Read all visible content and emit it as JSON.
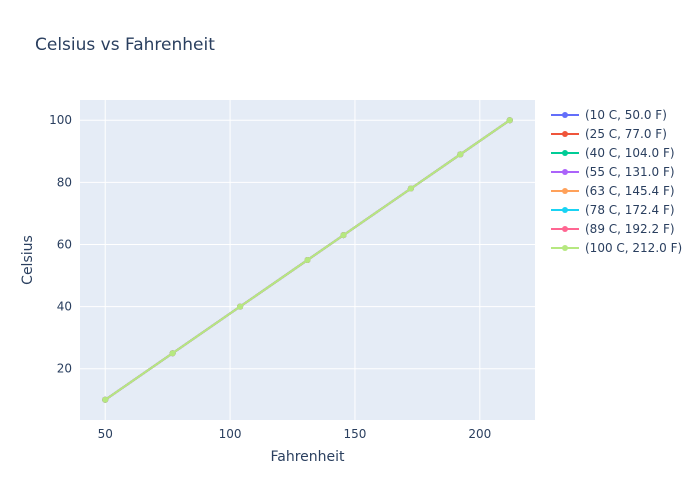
{
  "chart_data": {
    "type": "line",
    "title": "Celsius vs Fahrenheit",
    "xlabel": "Fahrenheit",
    "ylabel": "Celsius",
    "xlim": [
      39.9,
      222.1
    ],
    "ylim": [
      3.5,
      106.5
    ],
    "x_ticks": [
      50,
      100,
      150,
      200
    ],
    "y_ticks": [
      20,
      40,
      60,
      80,
      100
    ],
    "grid": true,
    "legend_position": "right",
    "plot_background": "#e5ecf6",
    "series": [
      {
        "name": "(10 C, 50.0 F)",
        "color": "#636efa",
        "x": [
          50.0,
          77.0,
          104.0,
          131.0,
          145.4,
          172.4,
          192.2,
          212.0
        ],
        "y": [
          10,
          25,
          40,
          55,
          63,
          78,
          89,
          100
        ]
      },
      {
        "name": "(25 C, 77.0 F)",
        "color": "#ef553b",
        "x": [
          50.0,
          77.0,
          104.0,
          131.0,
          145.4,
          172.4,
          192.2,
          212.0
        ],
        "y": [
          10,
          25,
          40,
          55,
          63,
          78,
          89,
          100
        ]
      },
      {
        "name": "(40 C, 104.0 F)",
        "color": "#00cc96",
        "x": [
          50.0,
          77.0,
          104.0,
          131.0,
          145.4,
          172.4,
          192.2,
          212.0
        ],
        "y": [
          10,
          25,
          40,
          55,
          63,
          78,
          89,
          100
        ]
      },
      {
        "name": "(55 C, 131.0 F)",
        "color": "#ab63fa",
        "x": [
          50.0,
          77.0,
          104.0,
          131.0,
          145.4,
          172.4,
          192.2,
          212.0
        ],
        "y": [
          10,
          25,
          40,
          55,
          63,
          78,
          89,
          100
        ]
      },
      {
        "name": "(63 C, 145.4 F)",
        "color": "#ffa15a",
        "x": [
          50.0,
          77.0,
          104.0,
          131.0,
          145.4,
          172.4,
          192.2,
          212.0
        ],
        "y": [
          10,
          25,
          40,
          55,
          63,
          78,
          89,
          100
        ]
      },
      {
        "name": "(78 C, 172.4 F)",
        "color": "#19d3f3",
        "x": [
          50.0,
          77.0,
          104.0,
          131.0,
          145.4,
          172.4,
          192.2,
          212.0
        ],
        "y": [
          10,
          25,
          40,
          55,
          63,
          78,
          89,
          100
        ]
      },
      {
        "name": "(89 C, 192.2 F)",
        "color": "#ff6692",
        "x": [
          50.0,
          77.0,
          104.0,
          131.0,
          145.4,
          172.4,
          192.2,
          212.0
        ],
        "y": [
          10,
          25,
          40,
          55,
          63,
          78,
          89,
          100
        ]
      },
      {
        "name": "(100 C, 212.0 F)",
        "color": "#b6e880",
        "x": [
          50.0,
          77.0,
          104.0,
          131.0,
          145.4,
          172.4,
          192.2,
          212.0
        ],
        "y": [
          10,
          25,
          40,
          55,
          63,
          78,
          89,
          100
        ]
      }
    ]
  }
}
